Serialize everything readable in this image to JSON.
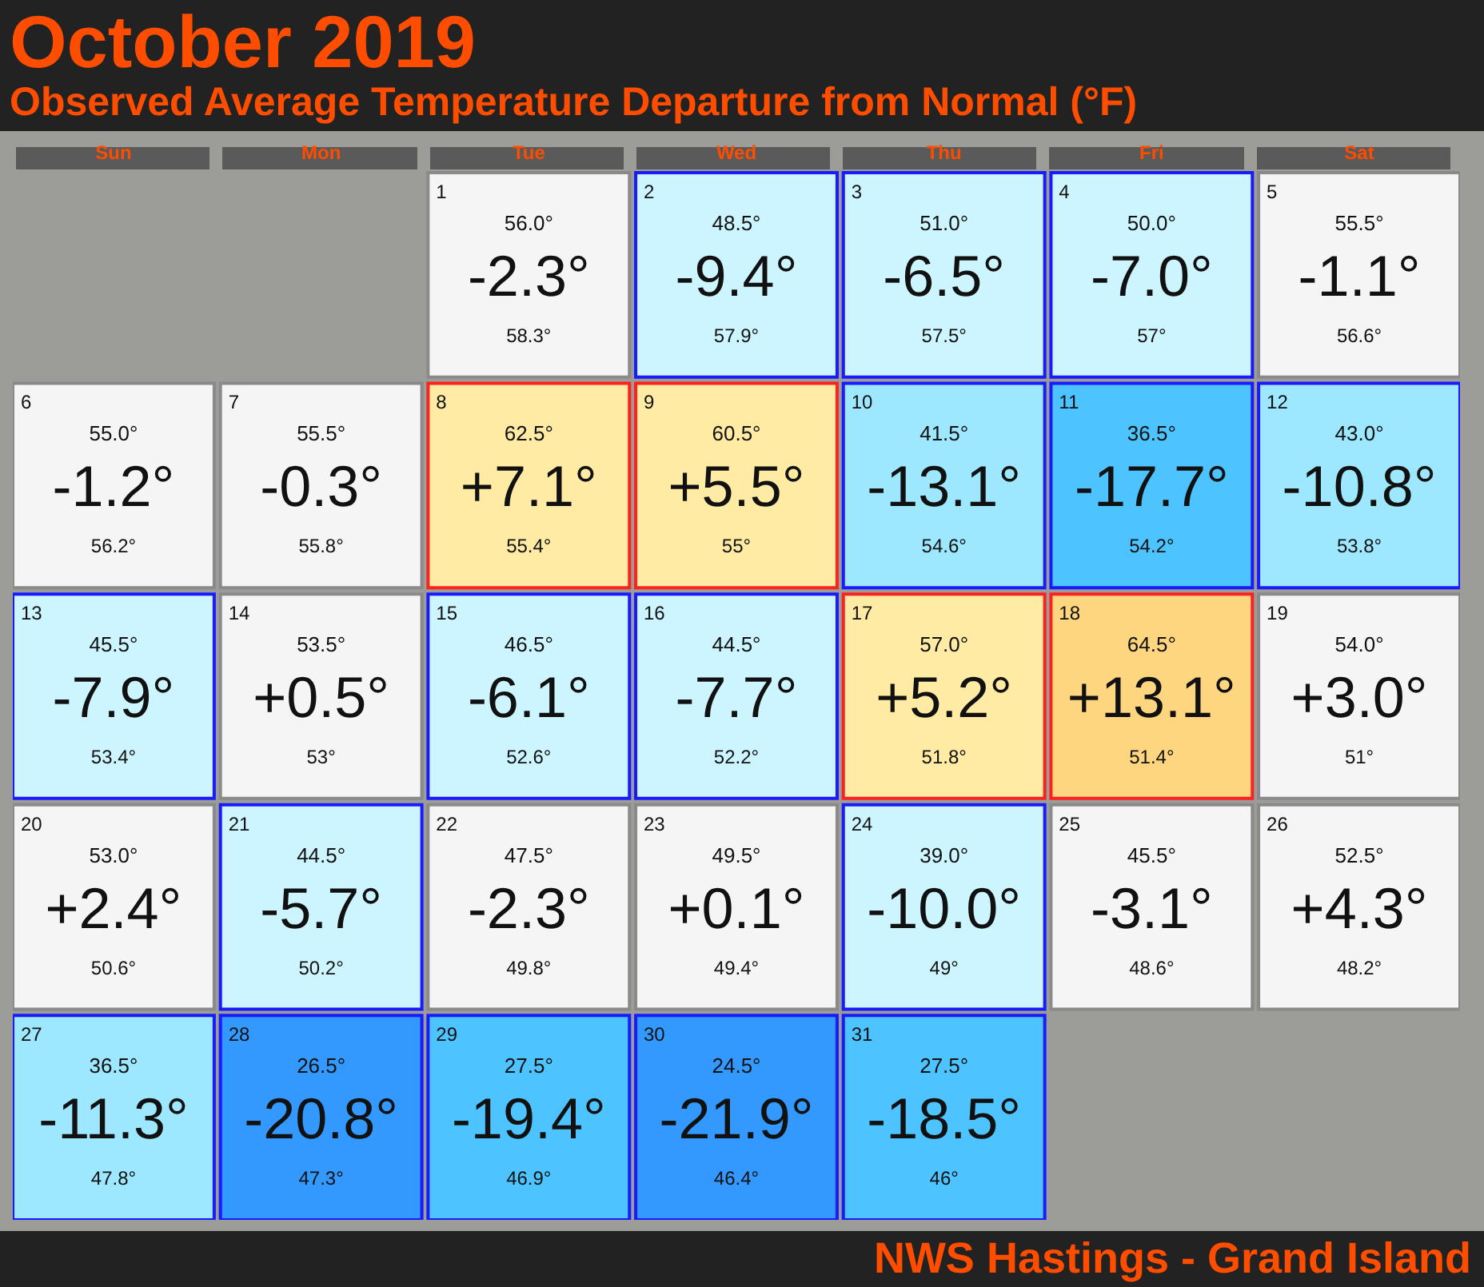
{
  "chart_data": {
    "type": "heatmap",
    "title": "October 2019",
    "subtitle": "Observed Average Temperature Departure from Normal (°F)",
    "categories": [
      "Sun",
      "Mon",
      "Tue",
      "Wed",
      "Thu",
      "Fri",
      "Sat"
    ],
    "y_categories": [
      null,
      null,
      null,
      null,
      null
    ],
    "cells": [
      [
        null,
        null,
        -2.3,
        -9.4,
        -6.5,
        -7.0,
        -1.1
      ],
      [
        -1.2,
        -0.3,
        7.1,
        5.5,
        -13.1,
        -17.7,
        -10.8
      ],
      [
        -7.9,
        0.5,
        -6.1,
        -7.7,
        5.2,
        13.1,
        3.0
      ],
      [
        2.4,
        -5.7,
        -2.3,
        0.1,
        -10.0,
        -3.1,
        4.3
      ],
      [
        -11.3,
        -20.8,
        -19.4,
        -21.9,
        -18.5,
        null,
        null
      ]
    ],
    "cell_labels": [
      [
        null,
        null,
        "-2.3°",
        "-9.4°",
        "-6.5°",
        "-7.0°",
        "-1.1°"
      ],
      [
        "-1.2°",
        "-0.3°",
        "+7.1°",
        "+5.5°",
        "-13.1°",
        "-17.7°",
        "-10.8°"
      ],
      [
        "-7.9°",
        "+0.5°",
        "-6.1°",
        "-7.7°",
        "+5.2°",
        "+13.1°",
        "+3.0°"
      ],
      [
        "+2.4°",
        "-5.7°",
        "-2.3°",
        "+0.1°",
        "-10.0°",
        "-3.1°",
        "+4.3°"
      ],
      [
        "-11.3°",
        "-20.8°",
        "-19.4°",
        "-21.9°",
        "-18.5°",
        null,
        null
      ]
    ],
    "colors": [
      [
        null,
        null,
        "#f5f5f5",
        "#ccf5ff",
        "#ccf5ff",
        "#ccf5ff",
        "#f5f5f5"
      ],
      [
        "#f5f5f5",
        "#f5f5f5",
        "#ffeba3",
        "#ffeba3",
        "#9de8ff",
        "#4dc4ff",
        "#9de8ff"
      ],
      [
        "#ccf5ff",
        "#f5f5f5",
        "#ccf5ff",
        "#ccf5ff",
        "#ffeba3",
        "#ffd680",
        "#f5f5f5"
      ],
      [
        "#f5f5f5",
        "#ccf5ff",
        "#f5f5f5",
        "#f5f5f5",
        "#ccf5ff",
        "#f5f5f5",
        "#f5f5f5"
      ],
      [
        "#9de8ff",
        "#3399ff",
        "#4dc4ff",
        "#3399ff",
        "#4dc4ff",
        null,
        null
      ]
    ],
    "annotations": [
      "NWS Hastings - Grand Island",
      "1",
      "56.0°",
      "58.3°",
      "2",
      "48.5°",
      "57.9°",
      "3",
      "51.0°",
      "57.5°",
      "4",
      "50.0°",
      "57°",
      "5",
      "55.5°",
      "56.6°",
      "6",
      "55.0°",
      "56.2°",
      "7",
      "55.5°",
      "55.8°",
      "8",
      "62.5°",
      "55.4°",
      "9",
      "60.5°",
      "55°",
      "10",
      "41.5°",
      "54.6°",
      "11",
      "36.5°",
      "54.2°",
      "12",
      "43.0°",
      "53.8°",
      "13",
      "45.5°",
      "53.4°",
      "14",
      "53.5°",
      "53°",
      "15",
      "46.5°",
      "52.6°",
      "16",
      "44.5°",
      "52.2°",
      "17",
      "57.0°",
      "51.8°",
      "18",
      "64.5°",
      "51.4°",
      "19",
      "54.0°",
      "51°",
      "20",
      "53.0°",
      "50.6°",
      "21",
      "44.5°",
      "50.2°",
      "22",
      "47.5°",
      "49.8°",
      "23",
      "49.5°",
      "49.4°",
      "24",
      "39.0°",
      "49°",
      "25",
      "45.5°",
      "48.6°",
      "26",
      "52.5°",
      "48.2°",
      "27",
      "36.5°",
      "47.8°",
      "28",
      "26.5°",
      "47.3°",
      "29",
      "27.5°",
      "46.9°",
      "30",
      "24.5°",
      "46.4°",
      "31",
      "27.5°",
      "46°"
    ]
  }
}
